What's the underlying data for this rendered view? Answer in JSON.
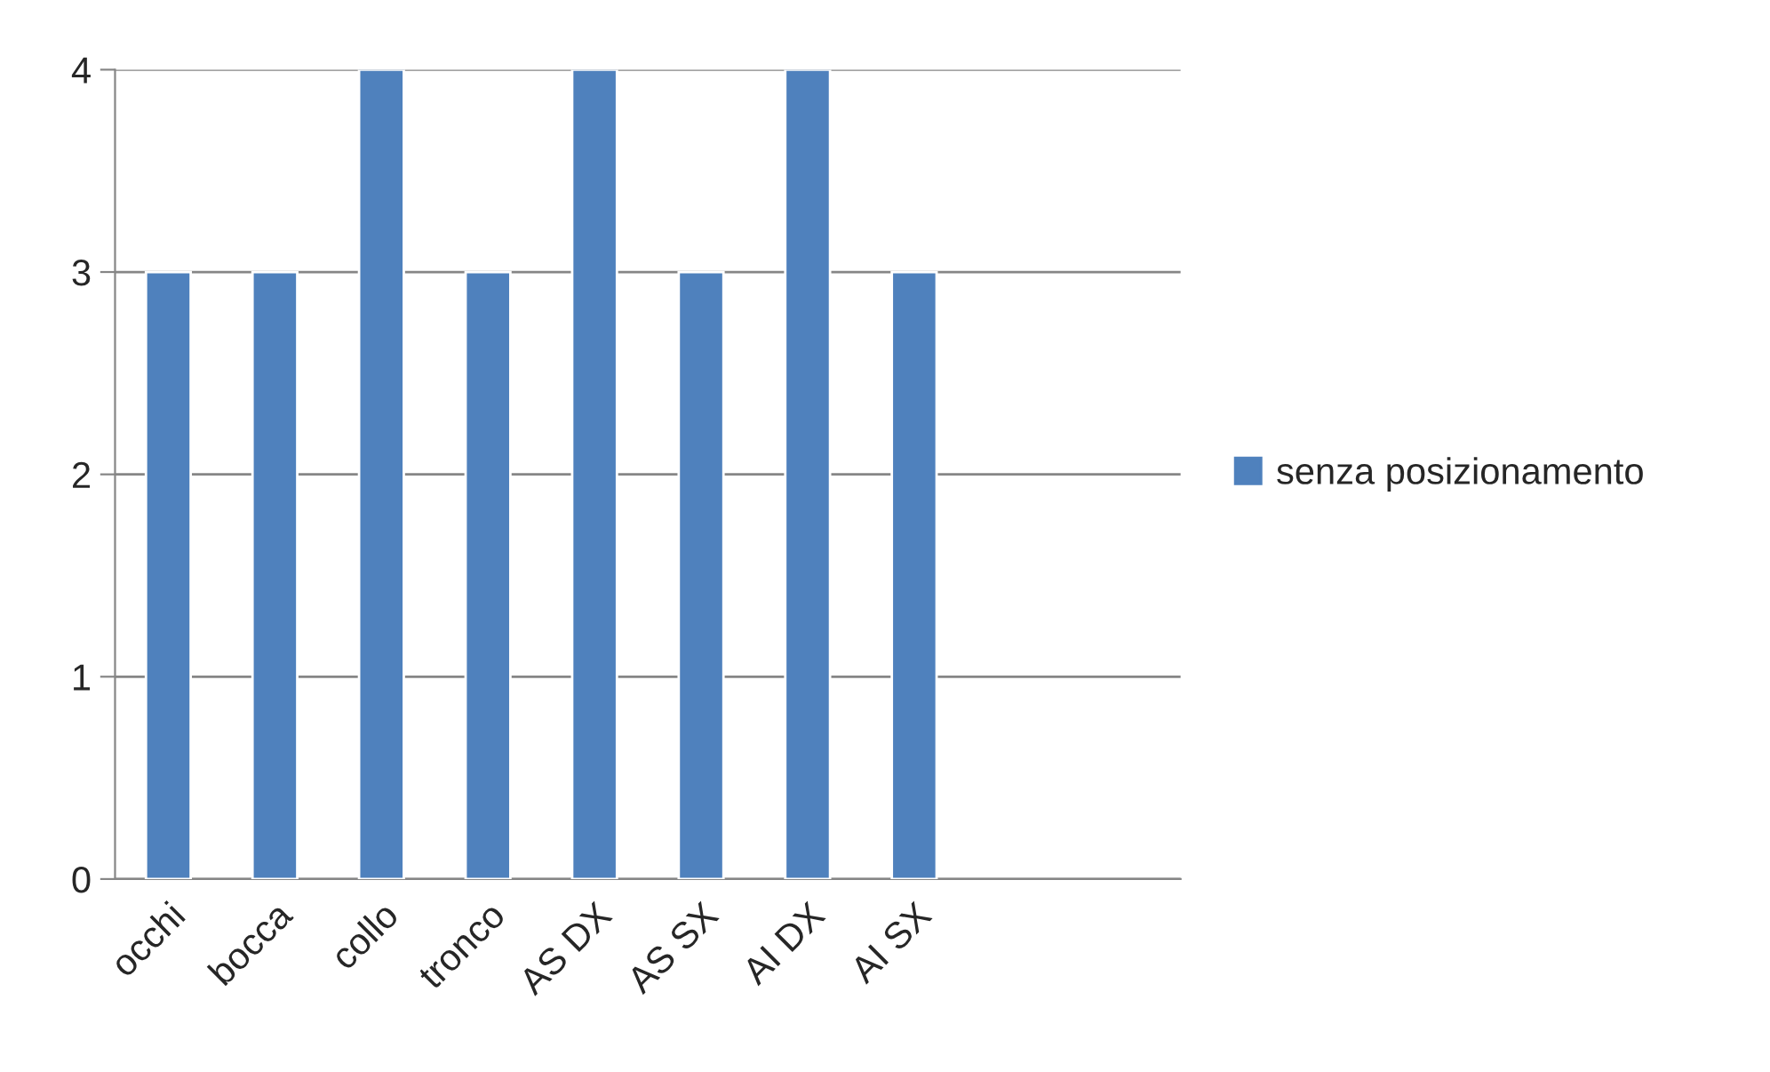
{
  "chart_data": {
    "type": "bar",
    "categories": [
      "occhi",
      "bocca",
      "collo",
      "tronco",
      "AS DX",
      "AS SX",
      "AI DX",
      "AI SX",
      null,
      null
    ],
    "series": [
      {
        "name": "senza posizionamento",
        "color": "#4f81bd",
        "values": [
          3,
          3,
          4,
          3,
          4,
          3,
          4,
          3,
          null,
          null
        ]
      }
    ],
    "ylim": [
      0,
      4
    ],
    "yticks": [
      0,
      1,
      2,
      3,
      4
    ],
    "grid": "y",
    "legend": "right"
  }
}
